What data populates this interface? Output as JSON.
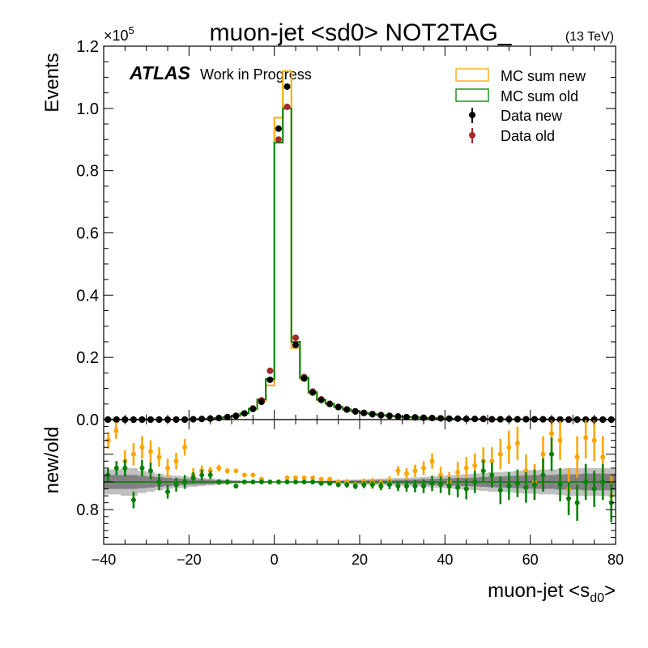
{
  "chart_data": [
    {
      "type": "histogram",
      "panel": "main",
      "title": "muon-jet <sd0> NOT2TAG_",
      "energy_label": "(13 TeV)",
      "experiment_label": "ATLAS",
      "status_label": "Work in Progress",
      "ylabel": "Events",
      "y_multiplier_label": "×10",
      "y_multiplier_exponent": "5",
      "xlim": [
        -40,
        80
      ],
      "ylim": [
        0,
        1.2
      ],
      "y_unit_scale": 100000,
      "xticks": [
        -40,
        -20,
        0,
        20,
        40,
        60,
        80
      ],
      "yticks": [
        0.0,
        0.2,
        0.4,
        0.6,
        0.8,
        1.0,
        1.2
      ],
      "ytick_labels": [
        "0.0",
        "0.2",
        "0.4",
        "0.6",
        "0.8",
        "1.0",
        "1.2"
      ],
      "legend_position": "top-right",
      "bin_edges": [
        -40,
        -38,
        -36,
        -34,
        -32,
        -30,
        -28,
        -26,
        -24,
        -22,
        -20,
        -18,
        -16,
        -14,
        -12,
        -10,
        -8,
        -6,
        -4,
        -2,
        0,
        2,
        4,
        6,
        8,
        10,
        12,
        14,
        16,
        18,
        20,
        22,
        24,
        26,
        28,
        30,
        32,
        34,
        36,
        38,
        40,
        42,
        44,
        46,
        48,
        50,
        52,
        54,
        56,
        58,
        60,
        62,
        64,
        66,
        68,
        70,
        72,
        74,
        76,
        78,
        80
      ],
      "series": [
        {
          "name": "MC sum new",
          "kind": "step",
          "color": "#ffa500",
          "values": [
            0,
            0,
            0,
            0,
            0,
            0,
            0,
            0,
            0,
            0,
            0.001,
            0.002,
            0.003,
            0.005,
            0.008,
            0.012,
            0.02,
            0.033,
            0.06,
            0.11,
            0.97,
            1.12,
            0.23,
            0.13,
            0.085,
            0.062,
            0.05,
            0.04,
            0.032,
            0.026,
            0.021,
            0.017,
            0.014,
            0.012,
            0.01,
            0.008,
            0.007,
            0.006,
            0.005,
            0.004,
            0.003,
            0.003,
            0.002,
            0.002,
            0.002,
            0.001,
            0.001,
            0.001,
            0.001,
            0.001,
            0.001,
            0.001,
            0,
            0,
            0,
            0,
            0,
            0,
            0,
            0
          ]
        },
        {
          "name": "MC sum old",
          "kind": "step",
          "color": "#008000",
          "values": [
            0,
            0,
            0,
            0,
            0,
            0,
            0,
            0,
            0,
            0,
            0.001,
            0.002,
            0.003,
            0.005,
            0.008,
            0.012,
            0.02,
            0.035,
            0.065,
            0.13,
            0.89,
            1.0,
            0.25,
            0.135,
            0.088,
            0.064,
            0.051,
            0.041,
            0.033,
            0.027,
            0.022,
            0.018,
            0.015,
            0.012,
            0.01,
            0.008,
            0.007,
            0.006,
            0.005,
            0.004,
            0.003,
            0.003,
            0.002,
            0.002,
            0.002,
            0.001,
            0.001,
            0.001,
            0.001,
            0.001,
            0.001,
            0.001,
            0,
            0,
            0,
            0,
            0,
            0,
            0,
            0
          ]
        },
        {
          "name": "Data new",
          "kind": "points",
          "color": "#000000",
          "x": [
            -39,
            -37,
            -35,
            -33,
            -31,
            -29,
            -27,
            -25,
            -23,
            -21,
            -19,
            -17,
            -15,
            -13,
            -11,
            -9,
            -7,
            -5,
            -3,
            -1,
            1,
            3,
            5,
            7,
            9,
            11,
            13,
            15,
            17,
            19,
            21,
            23,
            25,
            27,
            29,
            31,
            33,
            35,
            37,
            39,
            41,
            43,
            45,
            47,
            49,
            51,
            53,
            55,
            57,
            59,
            61,
            63,
            65,
            67,
            69,
            71,
            73,
            75,
            77,
            79
          ],
          "values": [
            0,
            0,
            0,
            0,
            0,
            0,
            0,
            0,
            0,
            0,
            0.001,
            0.002,
            0.003,
            0.005,
            0.008,
            0.012,
            0.02,
            0.034,
            0.057,
            0.128,
            0.935,
            1.07,
            0.24,
            0.132,
            0.087,
            0.063,
            0.05,
            0.04,
            0.032,
            0.026,
            0.021,
            0.017,
            0.014,
            0.012,
            0.01,
            0.008,
            0.007,
            0.006,
            0.005,
            0.004,
            0.003,
            0.003,
            0.002,
            0.002,
            0.002,
            0.001,
            0.001,
            0.001,
            0.001,
            0.001,
            0.001,
            0.001,
            0,
            0,
            0,
            0,
            0,
            0,
            0,
            0
          ]
        },
        {
          "name": "Data old",
          "kind": "points",
          "color": "#a52a2a",
          "x": [
            -39,
            -37,
            -35,
            -33,
            -31,
            -29,
            -27,
            -25,
            -23,
            -21,
            -19,
            -17,
            -15,
            -13,
            -11,
            -9,
            -7,
            -5,
            -3,
            -1,
            1,
            3,
            5,
            7,
            9,
            11,
            13,
            15,
            17,
            19,
            21,
            23,
            25,
            27,
            29,
            31,
            33,
            35,
            37,
            39,
            41,
            43,
            45,
            47,
            49,
            51,
            53,
            55,
            57,
            59,
            61,
            63,
            65,
            67,
            69,
            71,
            73,
            75,
            77,
            79
          ],
          "values": [
            0,
            0,
            0,
            0,
            0,
            0,
            0,
            0,
            0,
            0,
            0.001,
            0.002,
            0.003,
            0.005,
            0.008,
            0.012,
            0.02,
            0.036,
            0.062,
            0.157,
            0.9,
            1.005,
            0.263,
            0.137,
            0.09,
            0.065,
            0.051,
            0.041,
            0.033,
            0.027,
            0.022,
            0.018,
            0.015,
            0.012,
            0.01,
            0.008,
            0.007,
            0.006,
            0.005,
            0.004,
            0.003,
            0.003,
            0.002,
            0.002,
            0.002,
            0.001,
            0.001,
            0.001,
            0.001,
            0.001,
            0.001,
            0.001,
            0,
            0,
            0,
            0,
            0,
            0,
            0,
            0
          ]
        }
      ]
    },
    {
      "type": "scatter",
      "panel": "ratio",
      "ylabel": "new/old",
      "xlabel_main": "muon-jet <s",
      "xlabel_subscript": "d0",
      "xlabel_suffix": ">",
      "xlim": [
        -40,
        80
      ],
      "ylim": [
        0.55,
        1.45
      ],
      "yticks": [
        0.8
      ],
      "ytick_labels": [
        "0.8"
      ],
      "xticks": [
        -40,
        -20,
        0,
        20,
        40,
        60,
        80
      ],
      "xtick_labels": [
        "−40",
        "−20",
        "0",
        "20",
        "40",
        "60",
        "80"
      ],
      "band": {
        "center": 1.0,
        "outer_halfwidth": [
          0.09,
          0.09,
          0.1,
          0.1,
          0.08,
          0.07,
          0.06,
          0.05,
          0.045,
          0.04,
          0.035,
          0.03,
          0.025,
          0.02,
          0.015,
          0.012,
          0.01,
          0.008,
          0.006,
          0.004,
          0.003,
          0.003,
          0.004,
          0.006,
          0.008,
          0.01,
          0.012,
          0.014,
          0.016,
          0.018,
          0.02,
          0.022,
          0.024,
          0.026,
          0.028,
          0.03,
          0.033,
          0.036,
          0.04,
          0.044,
          0.048,
          0.052,
          0.056,
          0.06,
          0.065,
          0.07,
          0.07,
          0.075,
          0.08,
          0.085,
          0.085,
          0.09,
          0.09,
          0.095,
          0.1,
          0.1,
          0.1,
          0.1,
          0.1,
          0.1
        ],
        "inner_halfwidth": [
          0.05,
          0.05,
          0.05,
          0.05,
          0.045,
          0.04,
          0.035,
          0.03,
          0.025,
          0.022,
          0.02,
          0.018,
          0.015,
          0.012,
          0.01,
          0.008,
          0.006,
          0.005,
          0.004,
          0.003,
          0.002,
          0.002,
          0.003,
          0.004,
          0.005,
          0.006,
          0.007,
          0.008,
          0.009,
          0.01,
          0.011,
          0.012,
          0.013,
          0.014,
          0.015,
          0.016,
          0.018,
          0.02,
          0.022,
          0.024,
          0.026,
          0.028,
          0.03,
          0.032,
          0.035,
          0.038,
          0.04,
          0.042,
          0.045,
          0.048,
          0.05,
          0.05,
          0.05,
          0.055,
          0.055,
          0.055,
          0.06,
          0.06,
          0.06,
          0.06
        ],
        "outer_color": "#c0c0c0",
        "inner_color": "#808080"
      },
      "series": [
        {
          "name": "new",
          "color": "#ffa500",
          "x": [
            -38.9,
            -37.1,
            -35,
            -33,
            -31,
            -29,
            -27,
            -25,
            -23,
            -21,
            -19,
            -17,
            -15,
            -13,
            -11,
            -9,
            -7,
            -5,
            -3,
            -1,
            1,
            3,
            5,
            7,
            9,
            11,
            13,
            15,
            17,
            19,
            21,
            23,
            25,
            27,
            29,
            31,
            33,
            35,
            37,
            39,
            41,
            43,
            45,
            47,
            49,
            51,
            53,
            55,
            57,
            59,
            61,
            63,
            65,
            67,
            69,
            71,
            73,
            75,
            77,
            79
          ],
          "y": [
            1.3,
            1.37,
            1.15,
            1.2,
            1.25,
            1.22,
            1.18,
            1.1,
            1.15,
            1.25,
            1.05,
            1.08,
            1.08,
            1.1,
            1.08,
            1.08,
            1.05,
            1.05,
            1.02,
            1.0,
            1.0,
            1.03,
            1.03,
            1.03,
            1.03,
            1.02,
            1.02,
            1.0,
            1.0,
            0.98,
            1.0,
            1.0,
            0.99,
            1.01,
            1.08,
            1.06,
            1.08,
            1.1,
            1.15,
            1.05,
            1.0,
            1.07,
            1.1,
            1.12,
            1.15,
            1.15,
            1.2,
            1.25,
            1.28,
            1.08,
            1.0,
            1.2,
            1.35,
            1.3,
            0.95,
            1.18,
            1.32,
            1.3,
            1.18,
            0.9
          ],
          "yerr": [
            0.06,
            0.06,
            0.08,
            0.08,
            0.08,
            0.08,
            0.07,
            0.07,
            0.06,
            0.06,
            0.05,
            0.04,
            0.03,
            0.025,
            0.02,
            0.015,
            0.01,
            0.008,
            0.006,
            0.005,
            0.003,
            0.005,
            0.006,
            0.008,
            0.01,
            0.012,
            0.015,
            0.018,
            0.02,
            0.022,
            0.025,
            0.028,
            0.03,
            0.032,
            0.035,
            0.04,
            0.045,
            0.05,
            0.055,
            0.06,
            0.07,
            0.075,
            0.08,
            0.085,
            0.1,
            0.1,
            0.11,
            0.12,
            0.12,
            0.12,
            0.13,
            0.13,
            0.13,
            0.14,
            0.15,
            0.15,
            0.15,
            0.15,
            0.15,
            0.15
          ]
        },
        {
          "name": "old",
          "color": "#008000",
          "x": [
            -39,
            -37,
            -35,
            -33,
            -31,
            -29,
            -27,
            -25,
            -23,
            -21,
            -19,
            -17,
            -15,
            -13,
            -11,
            -9,
            -7,
            -5,
            -3,
            -1,
            1,
            3,
            5,
            7,
            9,
            11,
            13,
            15,
            17,
            19,
            21,
            23,
            25,
            27,
            29,
            31,
            33,
            35,
            37,
            39,
            41,
            43,
            45,
            47,
            49,
            51,
            53,
            55,
            57,
            59,
            61,
            63,
            65,
            67,
            69,
            71,
            73,
            75,
            77,
            79
          ],
          "y": [
            1.05,
            1.1,
            1.1,
            0.87,
            1.1,
            1.08,
            1.0,
            0.93,
            0.98,
            1.0,
            1.03,
            1.05,
            1.05,
            1.0,
            1.0,
            0.97,
            1.0,
            1.0,
            1.0,
            1.0,
            1.0,
            1.0,
            1.0,
            1.0,
            1.0,
            0.99,
            0.99,
            0.98,
            0.98,
            0.97,
            0.98,
            0.98,
            0.97,
            0.98,
            0.97,
            0.97,
            0.97,
            0.97,
            0.99,
            0.98,
            0.97,
            0.96,
            0.95,
            1.0,
            1.08,
            1.05,
            0.94,
            0.97,
            0.99,
            0.96,
            0.98,
            1.05,
            1.2,
            0.98,
            0.88,
            0.85,
            1.0,
            0.95,
            1.0,
            0.85
          ],
          "yerr": [
            0.05,
            0.05,
            0.06,
            0.06,
            0.06,
            0.06,
            0.06,
            0.05,
            0.05,
            0.05,
            0.04,
            0.04,
            0.03,
            0.02,
            0.02,
            0.015,
            0.01,
            0.008,
            0.006,
            0.005,
            0.003,
            0.005,
            0.006,
            0.008,
            0.01,
            0.012,
            0.015,
            0.018,
            0.02,
            0.022,
            0.025,
            0.028,
            0.03,
            0.032,
            0.035,
            0.04,
            0.045,
            0.05,
            0.055,
            0.06,
            0.065,
            0.07,
            0.075,
            0.08,
            0.08,
            0.09,
            0.1,
            0.1,
            0.1,
            0.11,
            0.11,
            0.12,
            0.12,
            0.12,
            0.12,
            0.13,
            0.13,
            0.13,
            0.13,
            0.14
          ]
        }
      ]
    }
  ]
}
